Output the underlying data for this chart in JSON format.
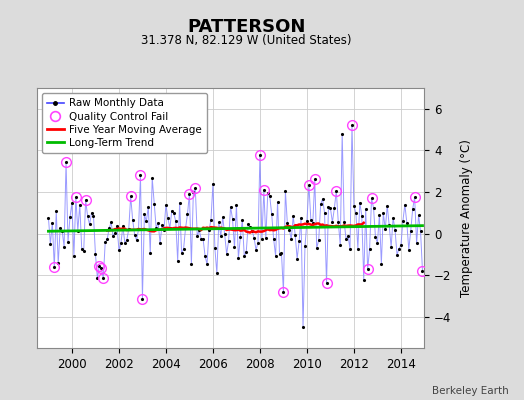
{
  "title": "PATTERSON",
  "subtitle": "31.378 N, 82.129 W (United States)",
  "credit": "Berkeley Earth",
  "ylabel": "Temperature Anomaly (°C)",
  "xlim": [
    1998.5,
    2015.0
  ],
  "ylim": [
    -5.5,
    7.0
  ],
  "yticks": [
    -4,
    -2,
    0,
    2,
    4,
    6
  ],
  "xticks": [
    2000,
    2002,
    2004,
    2006,
    2008,
    2010,
    2012,
    2014
  ],
  "background_color": "#dcdcdc",
  "plot_bg_color": "#ffffff",
  "raw_line_color": "#aaaaff",
  "raw_marker_color": "#000000",
  "raw_color": "#0000cc",
  "qc_color": "#ff44ff",
  "moving_avg_color": "#ff0000",
  "trend_color": "#00bb00",
  "seed": 12,
  "n_months": 192,
  "start_year": 1999.0
}
